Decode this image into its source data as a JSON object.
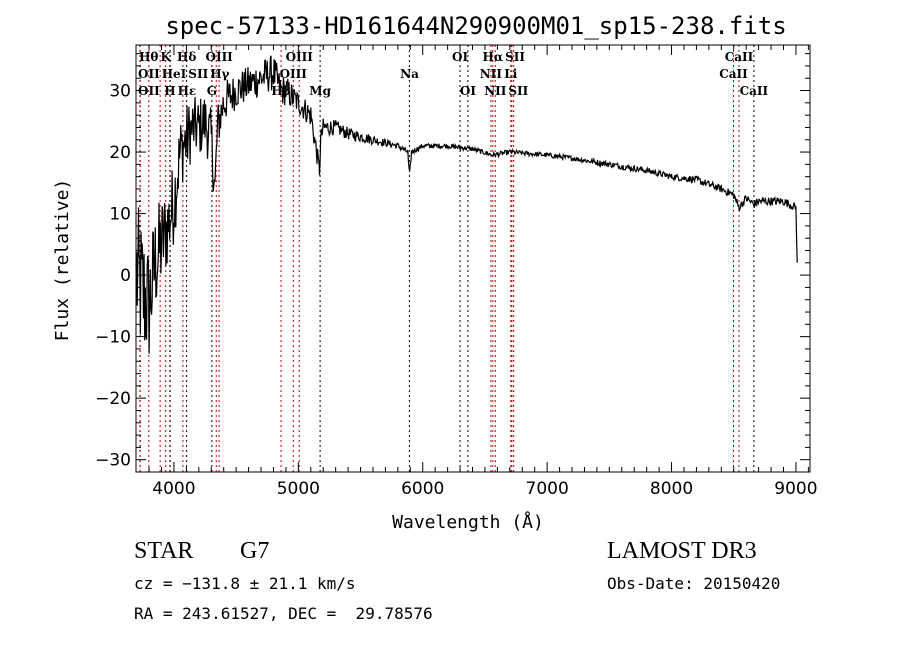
{
  "chart_data": {
    "type": "line",
    "title": "spec-57133-HD161644N290900M01_sp15-238.fits",
    "xlabel": "Wavelength (Å)",
    "ylabel": "Flux (relative)",
    "xlim": [
      3695,
      9113
    ],
    "ylim": [
      -32,
      37.4
    ],
    "xticks": [
      4000,
      5000,
      6000,
      7000,
      8000,
      9000
    ],
    "yticks": [
      -30,
      -20,
      -10,
      0,
      10,
      20,
      30
    ],
    "series": [
      {
        "name": "spectrum",
        "color": "#000000",
        "x": [
          3700,
          3750,
          3800,
          3850,
          3900,
          3950,
          4000,
          4050,
          4100,
          4150,
          4200,
          4250,
          4300,
          4330,
          4350,
          4400,
          4500,
          4600,
          4700,
          4800,
          4860,
          4900,
          5000,
          5100,
          5170,
          5180,
          5200,
          5300,
          5400,
          5500,
          5600,
          5700,
          5800,
          5880,
          5893,
          5910,
          6000,
          6200,
          6400,
          6563,
          6700,
          7000,
          7200,
          7500,
          7800,
          8000,
          8200,
          8400,
          8500,
          8542,
          8600,
          8662,
          8700,
          8800,
          8900,
          9000,
          9005,
          9010
        ],
        "y": [
          0,
          -3,
          -5,
          2,
          5,
          8,
          12,
          20,
          22,
          24,
          24,
          25,
          22,
          14,
          24,
          28,
          30,
          31,
          32,
          33,
          30,
          30,
          28,
          26,
          17,
          22,
          24,
          24,
          23,
          22.5,
          22,
          21.5,
          21,
          20,
          16,
          20,
          21,
          21,
          20.5,
          19.5,
          20,
          19.5,
          19,
          18,
          17,
          16,
          15.5,
          14,
          13,
          11,
          12.5,
          11.5,
          12,
          12,
          12,
          11,
          6,
          2
        ],
        "noise": [
          12,
          12,
          10,
          9,
          8,
          7,
          7,
          6,
          6,
          5,
          5,
          5,
          5,
          4,
          4,
          3.5,
          3,
          3,
          3,
          3,
          2.5,
          2.5,
          2,
          2,
          1.5,
          1.5,
          1.5,
          1.2,
          1,
          0.9,
          0.8,
          0.6,
          0.5,
          0.5,
          0.5,
          0.5,
          0.4,
          0.4,
          0.4,
          0.4,
          0.4,
          0.4,
          0.4,
          0.5,
          0.5,
          0.5,
          0.6,
          0.6,
          0.7,
          0.7,
          0.7,
          0.7,
          0.7,
          0.7,
          0.7,
          0.7,
          0.3,
          0.2
        ]
      }
    ],
    "lines": [
      {
        "label": "Hθ",
        "wave": 3798,
        "row": 0,
        "color": "#c00000"
      },
      {
        "label": "K",
        "wave": 3934,
        "row": 0,
        "color": "#c00000"
      },
      {
        "label": "Hδ",
        "wave": 4102,
        "row": 0,
        "color": "#000000"
      },
      {
        "label": "OII",
        "wave": 3727,
        "row": 1,
        "color": "#c00000"
      },
      {
        "label": "HeI",
        "wave": 3889,
        "row": 1,
        "color": "#c00000"
      },
      {
        "label": "SII",
        "wave": 4072,
        "row": 1,
        "color": "#c00000"
      },
      {
        "label": "OII",
        "wave": 3729,
        "row": 2,
        "color": "#c00000"
      },
      {
        "label": "Hε",
        "wave": 3970,
        "row": 2,
        "color": "#c00000"
      },
      {
        "label": "H",
        "wave": 3968,
        "row": 2,
        "color": "#000000"
      },
      {
        "label": "OIII",
        "wave": 4363,
        "row": 0,
        "color": "#c00000"
      },
      {
        "label": "Hγ",
        "wave": 4340,
        "row": 1,
        "color": "#c00000"
      },
      {
        "label": "G",
        "wave": 4305,
        "row": 2,
        "color": "#000000"
      },
      {
        "label": "OIII",
        "wave": 5007,
        "row": 0,
        "color": "#c00000"
      },
      {
        "label": "OIII",
        "wave": 4959,
        "row": 1,
        "color": "#c00000"
      },
      {
        "label": "Hβ",
        "wave": 4861,
        "row": 2,
        "color": "#c00000"
      },
      {
        "label": "Mg",
        "wave": 5175,
        "row": 2,
        "color": "#000000"
      },
      {
        "label": "Na",
        "wave": 5893,
        "row": 1,
        "color": "#000000"
      },
      {
        "label": "OI",
        "wave": 6300,
        "row": 0,
        "color": "#000000"
      },
      {
        "label": "OI",
        "wave": 6363,
        "row": 2,
        "color": "#000000"
      },
      {
        "label": "Hα",
        "wave": 6563,
        "row": 0,
        "color": "#c00000"
      },
      {
        "label": "SII",
        "wave": 6716,
        "row": 0,
        "color": "#c00000"
      },
      {
        "label": "NII",
        "wave": 6548,
        "row": 1,
        "color": "#c00000"
      },
      {
        "label": "Li",
        "wave": 6708,
        "row": 1,
        "color": "#c00000"
      },
      {
        "label": "NII",
        "wave": 6583,
        "row": 2,
        "color": "#c00000"
      },
      {
        "label": "SII",
        "wave": 6731,
        "row": 2,
        "color": "#c00000"
      },
      {
        "label": "CaII",
        "wave": 8542,
        "row": 0,
        "color": "#c00000"
      },
      {
        "label": "CaII",
        "wave": 8498,
        "row": 1,
        "color": "#c00000"
      },
      {
        "label": "CaII",
        "wave": 8662,
        "row": 2,
        "color": "#000000"
      }
    ]
  },
  "info": {
    "object_class": "STAR",
    "subclass": "G7",
    "survey": "LAMOST DR3",
    "cz": "cz = −131.8 ± 21.1 km/s",
    "obs_date": "Obs-Date: 20150420",
    "radec": "RA = 243.61527, DEC =  29.78576"
  }
}
